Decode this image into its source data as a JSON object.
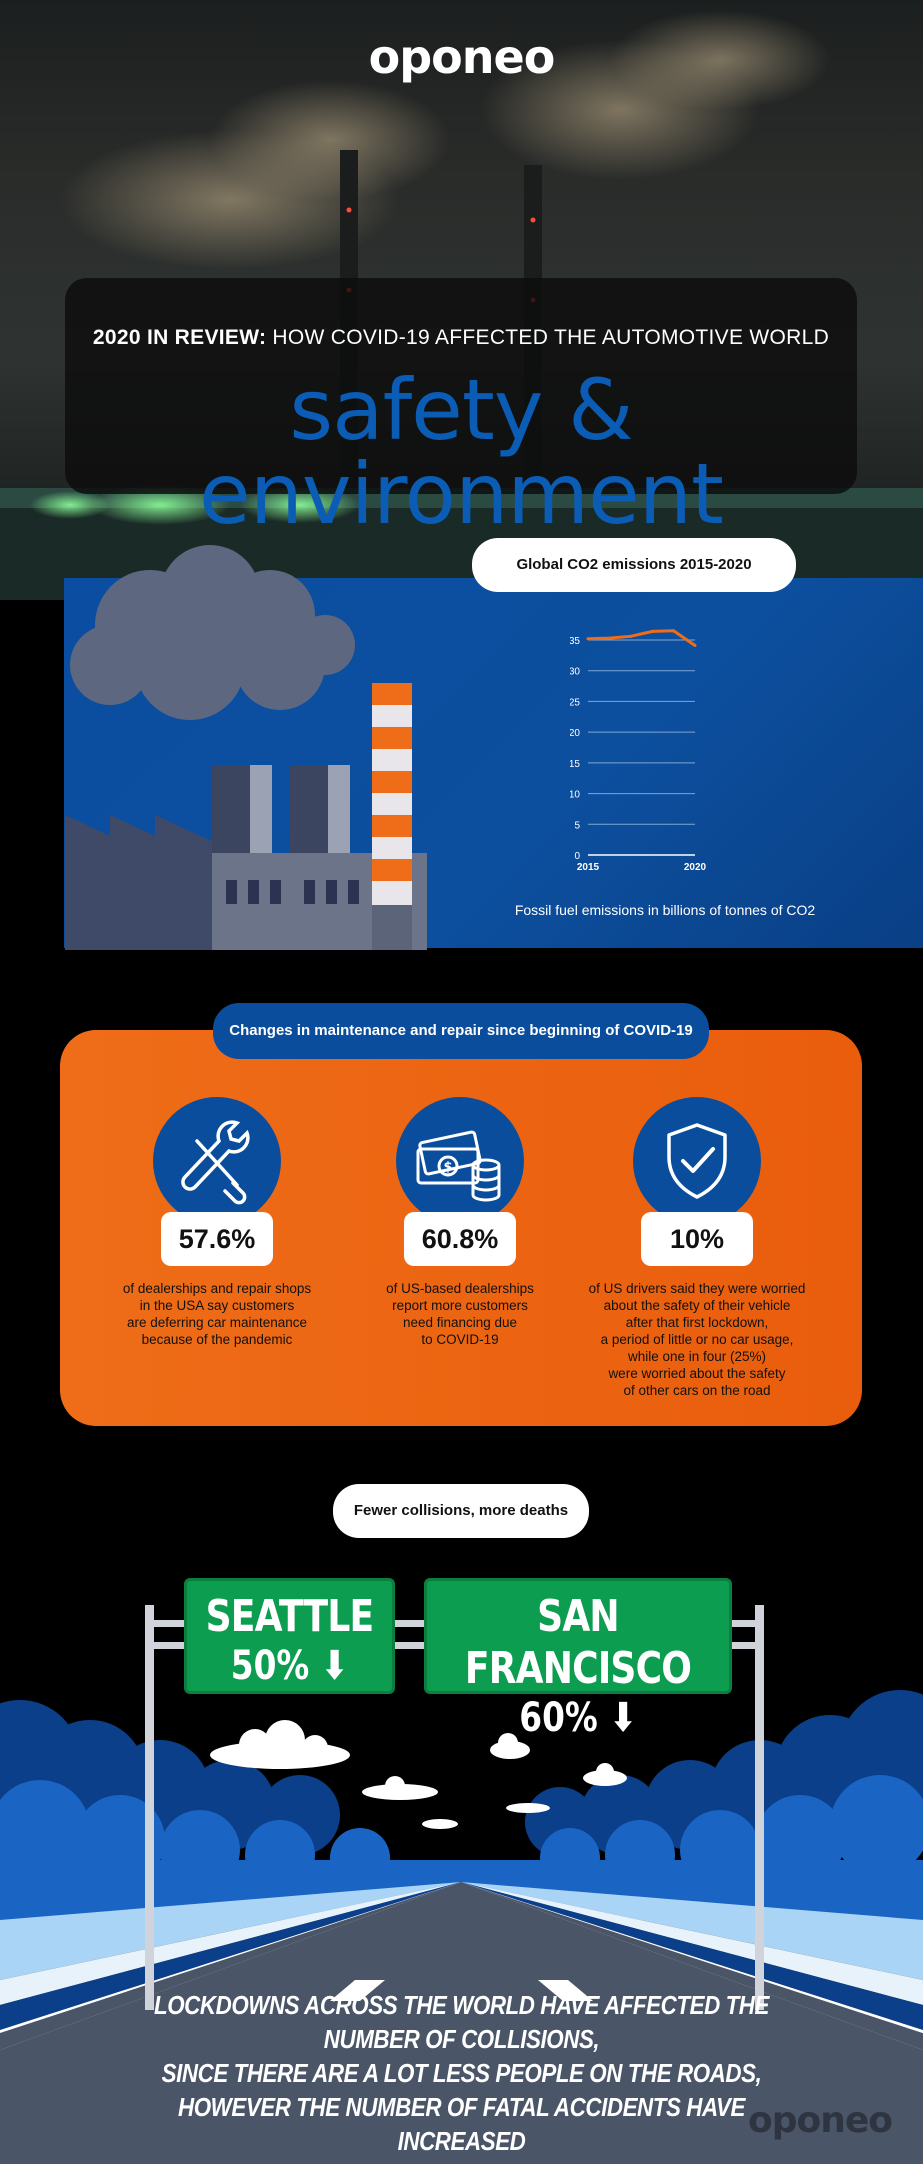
{
  "brand": {
    "logo": "oponeo"
  },
  "header": {
    "title_bold": "2020 IN REVIEW:",
    "title_rest": " HOW COVID-19 AFFECTED THE AUTOMOTIVE WORLD",
    "subtitle": "safety & environment"
  },
  "co2": {
    "heading": "Global CO2 emissions 2015-2020",
    "caption": "Fossil fuel emissions in billions of tonnes of CO2"
  },
  "chart_data": {
    "type": "line",
    "x": [
      2015,
      2016,
      2017,
      2018,
      2019,
      2020
    ],
    "series": [
      {
        "values": [
          35.2,
          35.3,
          35.6,
          36.4,
          36.5,
          34.1
        ],
        "color": "#ef6d18"
      }
    ],
    "xticks": [
      "2015",
      "2020"
    ],
    "yticks": [
      "0",
      "5",
      "10",
      "15",
      "20",
      "25",
      "30",
      "35"
    ],
    "ylim": [
      0,
      35
    ],
    "grid": true
  },
  "maintenance": {
    "heading": "Changes in maintenance and repair since beginning of COVID-19",
    "stats": [
      {
        "icon": "tools-icon",
        "value": "57.6%",
        "lines": [
          "of dealerships and repair shops",
          "in the USA say customers",
          "are deferring car maintenance",
          "because of the pandemic"
        ]
      },
      {
        "icon": "money-icon",
        "value": "60.8%",
        "lines": [
          "of US-based dealerships",
          "report more customers",
          "need financing due",
          "to COVID-19"
        ]
      },
      {
        "icon": "shield-check-icon",
        "value": "10%",
        "lines": [
          "of US drivers said they were worried",
          "about the safety of their vehicle",
          "after that first lockdown,",
          "a period of little or no car usage,",
          "while one in four (25%)",
          "were worried about the safety",
          "of other cars on the road"
        ]
      }
    ]
  },
  "collisions": {
    "heading": "Fewer collisions, more deaths",
    "signs": [
      {
        "city": "SEATTLE",
        "value": "50%"
      },
      {
        "city": "SAN FRANCISCO",
        "value": "60%"
      }
    ],
    "bottom_lines": [
      "LOCKDOWNS ACROSS THE WORLD HAVE AFFECTED THE NUMBER OF COLLISIONS,",
      "SINCE THERE ARE A LOT LESS PEOPLE ON THE ROADS,",
      "HOWEVER THE NUMBER OF FATAL ACCIDENTS HAVE INCREASED"
    ]
  },
  "colors": {
    "accent_blue": "#0a4d9c",
    "accent_orange": "#ef6d18",
    "sign_green": "#0c9d51"
  }
}
